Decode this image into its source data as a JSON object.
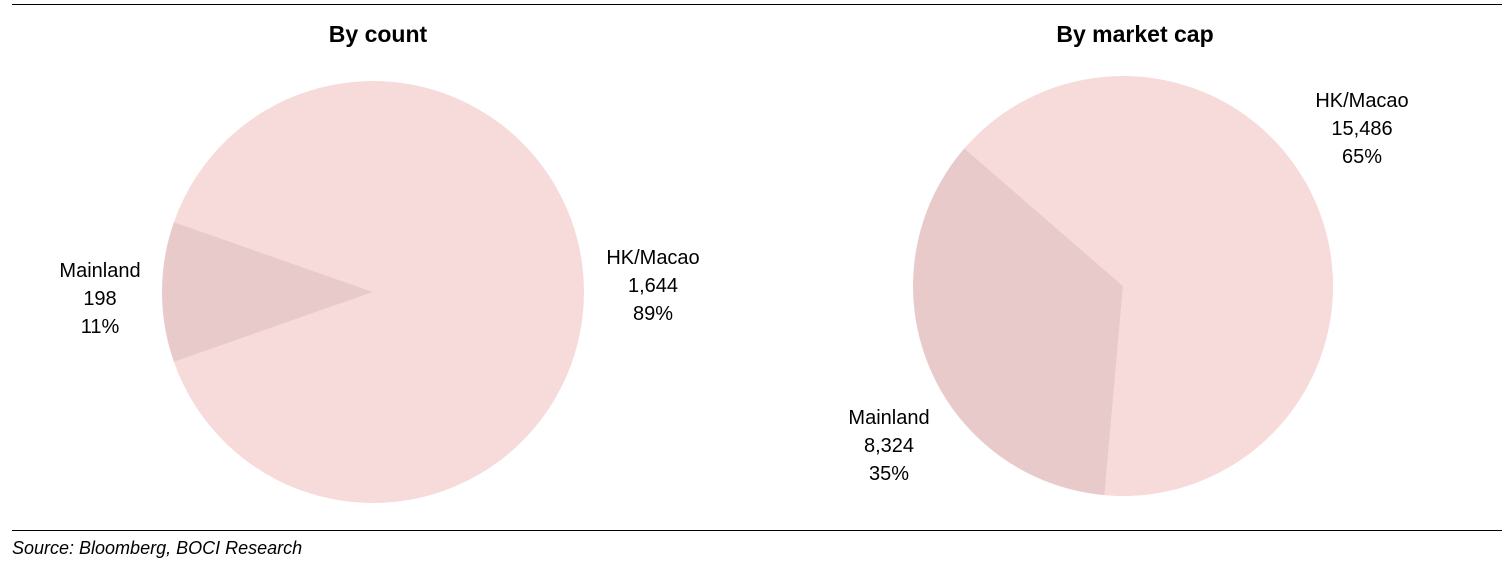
{
  "source": "Source: Bloomberg, BOCI Research",
  "colors": {
    "hk": "#F7DADA",
    "mainland": "#E8CACB"
  },
  "chart_data": [
    {
      "type": "pie",
      "title": "By count",
      "slices": [
        {
          "label": "HK/Macao",
          "value": 1644,
          "value_label": "1,644",
          "percent": "89%"
        },
        {
          "label": "Mainland",
          "value": 198,
          "value_label": "198",
          "percent": "11%"
        }
      ]
    },
    {
      "type": "pie",
      "title": "By market cap",
      "slices": [
        {
          "label": "HK/Macao",
          "value": 15486,
          "value_label": "15,486",
          "percent": "65%"
        },
        {
          "label": "Mainland",
          "value": 8324,
          "value_label": "8,324",
          "percent": "35%"
        }
      ]
    }
  ]
}
